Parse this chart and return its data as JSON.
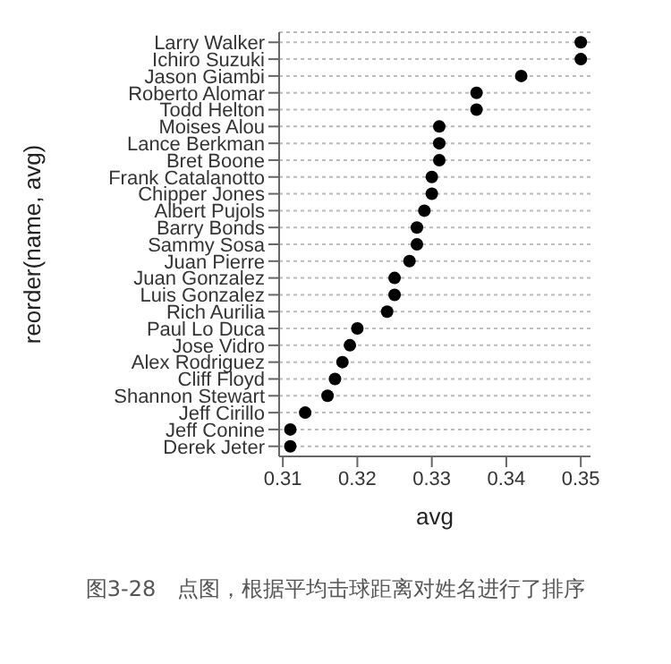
{
  "chart_data": {
    "type": "scatter",
    "orientation": "horizontal",
    "xlabel": "avg",
    "ylabel": "reorder(name, avg)",
    "categories": [
      "Larry Walker",
      "Ichiro Suzuki",
      "Jason Giambi",
      "Roberto Alomar",
      "Todd Helton",
      "Moises Alou",
      "Lance Berkman",
      "Bret Boone",
      "Frank Catalanotto",
      "Chipper Jones",
      "Albert Pujols",
      "Barry Bonds",
      "Sammy Sosa",
      "Juan Pierre",
      "Juan Gonzalez",
      "Luis Gonzalez",
      "Rich Aurilia",
      "Paul Lo Duca",
      "Jose Vidro",
      "Alex Rodriguez",
      "Cliff Floyd",
      "Shannon Stewart",
      "Jeff Cirillo",
      "Jeff Conine",
      "Derek Jeter"
    ],
    "values": [
      0.35,
      0.35,
      0.342,
      0.336,
      0.336,
      0.331,
      0.331,
      0.331,
      0.33,
      0.33,
      0.329,
      0.328,
      0.328,
      0.327,
      0.325,
      0.325,
      0.324,
      0.32,
      0.319,
      0.318,
      0.317,
      0.316,
      0.313,
      0.311,
      0.311
    ],
    "color": "#000000",
    "marker": "circle",
    "grid": "y",
    "xlim": [
      0.3095,
      0.3513
    ],
    "xticks": [
      0.31,
      0.32,
      0.33,
      0.34,
      0.35
    ],
    "annotations": [
      "图3-28　点图，根据平均击球距离对姓名进行了排序"
    ]
  }
}
